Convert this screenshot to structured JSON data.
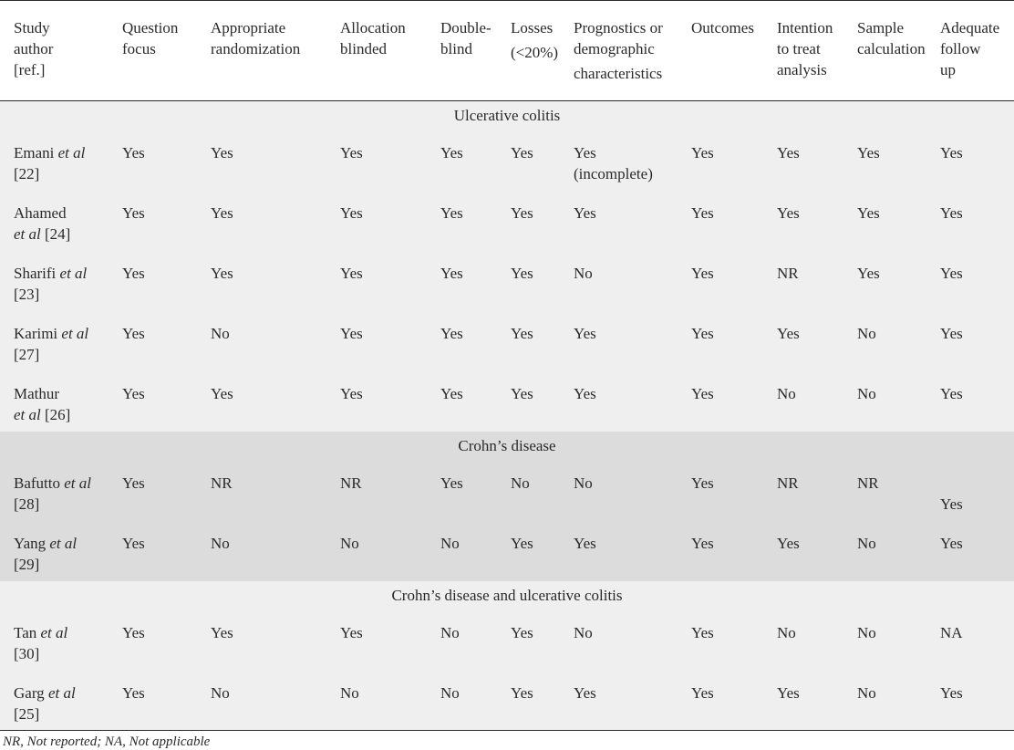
{
  "header": {
    "study": [
      "Study",
      "author",
      "[ref.]"
    ],
    "question": [
      "Question",
      "focus"
    ],
    "randomization": [
      "Appropriate",
      "randomization"
    ],
    "allocation": [
      "Allocation",
      "blinded"
    ],
    "double": [
      "Double-",
      "blind"
    ],
    "losses": [
      "Losses",
      "(<20%)"
    ],
    "prognostics": [
      "Prognostics or",
      "demographic",
      "characteristics"
    ],
    "outcomes": [
      "Outcomes"
    ],
    "itt": [
      "Intention",
      "to treat",
      "analysis"
    ],
    "sample": [
      "Sample",
      "calculation"
    ],
    "followup": [
      "Adequate",
      "follow",
      "up"
    ]
  },
  "sections": [
    {
      "title": "Ulcerative colitis",
      "rows": [
        {
          "author": "Emani",
          "etal": "et al",
          "ref": "[22]",
          "values": [
            "Yes",
            "Yes",
            "Yes",
            "Yes",
            "Yes",
            "Yes",
            "Yes",
            "Yes",
            "Yes",
            "Yes"
          ],
          "extra": "(incomplete)"
        },
        {
          "author": "Ahamed",
          "etal": "et al",
          "ref": "[24]",
          "values": [
            "Yes",
            "Yes",
            "Yes",
            "Yes",
            "Yes",
            "Yes",
            "Yes",
            "Yes",
            "Yes",
            "Yes"
          ]
        },
        {
          "author": "Sharifi",
          "etal": "et al",
          "ref": "[23]",
          "values": [
            "Yes",
            "Yes",
            "Yes",
            "Yes",
            "Yes",
            "No",
            "Yes",
            "NR",
            "Yes",
            "Yes"
          ]
        },
        {
          "author": "Karimi",
          "etal": "et al",
          "ref": "[27]",
          "values": [
            "Yes",
            "No",
            "Yes",
            "Yes",
            "Yes",
            "Yes",
            "Yes",
            "Yes",
            "No",
            "Yes"
          ]
        },
        {
          "author": "Mathur",
          "etal": "et al",
          "ref": "[26]",
          "values": [
            "Yes",
            "Yes",
            "Yes",
            "Yes",
            "Yes",
            "Yes",
            "Yes",
            "No",
            "No",
            "Yes"
          ]
        }
      ]
    },
    {
      "title": "Crohn’s disease",
      "rows": [
        {
          "author": "Bafutto",
          "etal": "et al",
          "ref": "[28]",
          "values": [
            "Yes",
            "NR",
            "NR",
            "Yes",
            "No",
            "No",
            "Yes",
            "NR",
            "NR",
            "Yes"
          ]
        },
        {
          "author": "Yang",
          "etal": "et al",
          "ref": "[29]",
          "values": [
            "Yes",
            "No",
            "No",
            "No",
            "Yes",
            "Yes",
            "Yes",
            "Yes",
            "No",
            "Yes"
          ]
        }
      ]
    },
    {
      "title": "Crohn’s disease and ulcerative colitis",
      "rows": [
        {
          "author": "Tan",
          "etal": "et al",
          "ref": "[30]",
          "values": [
            "Yes",
            "Yes",
            "Yes",
            "No",
            "Yes",
            "No",
            "Yes",
            "No",
            "No",
            "NA"
          ]
        },
        {
          "author": "Garg",
          "etal": "et al",
          "ref": "[25]",
          "values": [
            "Yes",
            "No",
            "No",
            "No",
            "Yes",
            "Yes",
            "Yes",
            "Yes",
            "No",
            "Yes"
          ]
        }
      ]
    }
  ],
  "footnote": "NR, Not reported; NA, Not applicable"
}
